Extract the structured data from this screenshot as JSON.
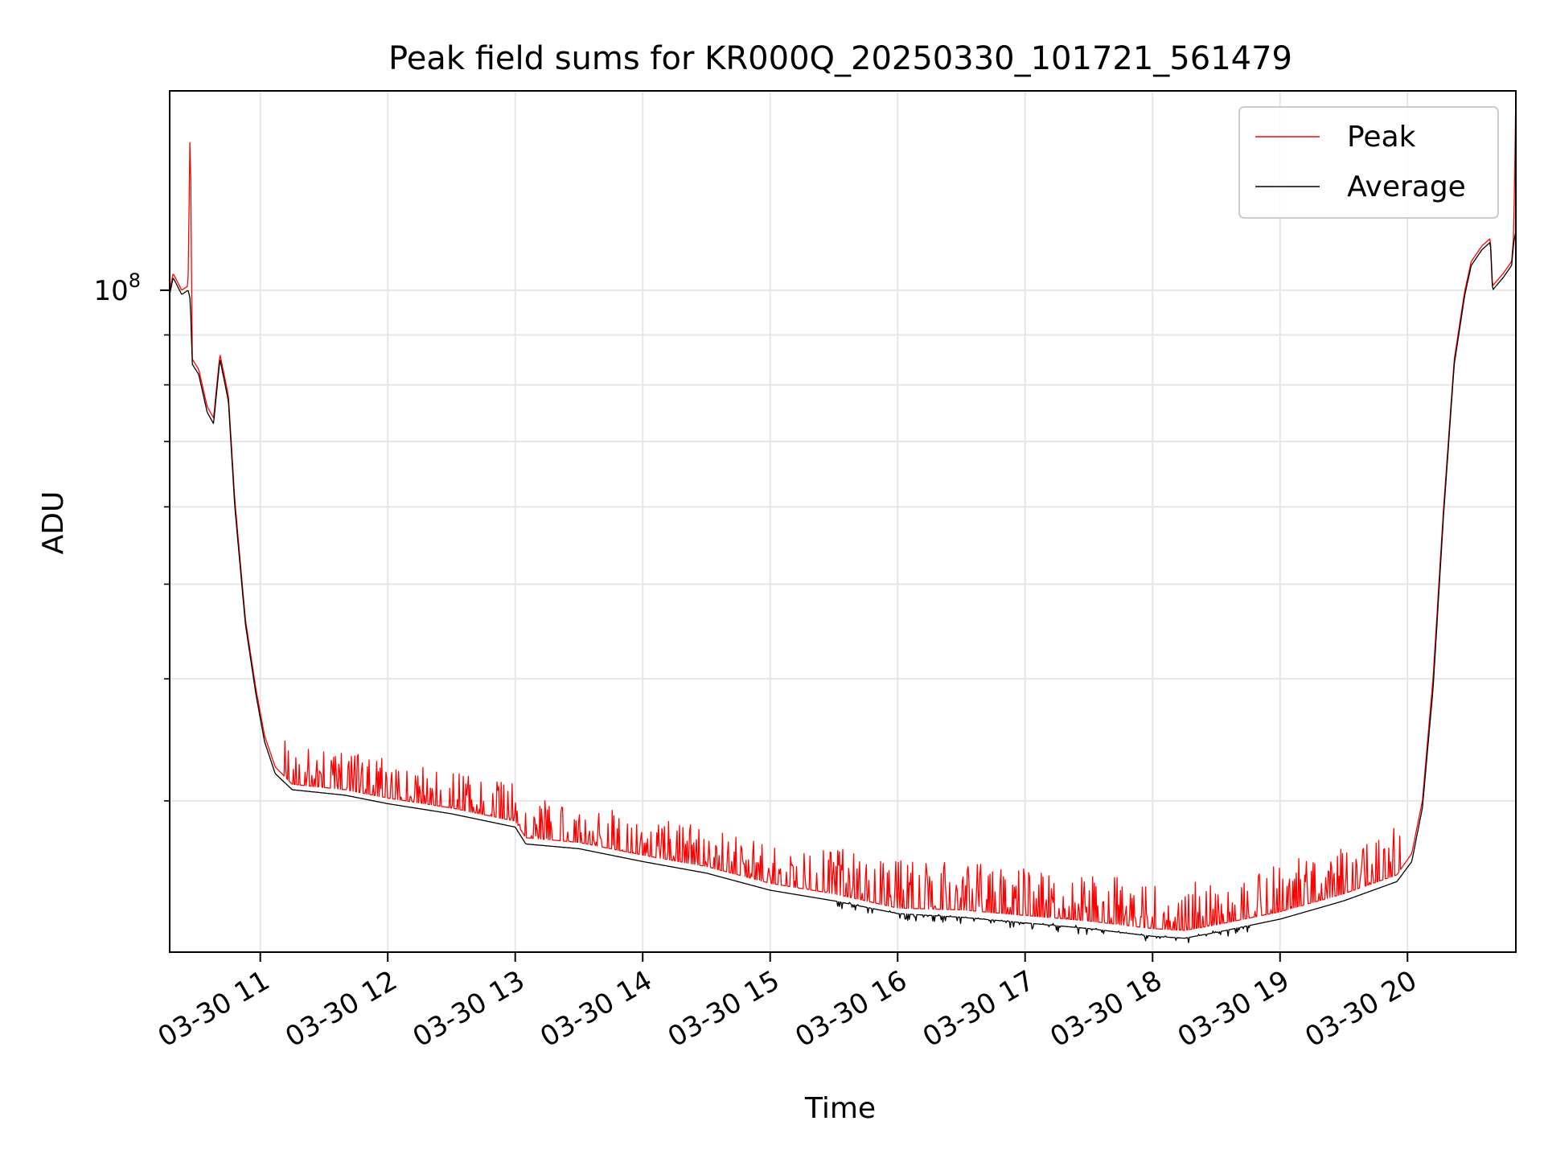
{
  "chart_data": {
    "type": "line",
    "title": "Peak field sums for KR000Q_20250330_101721_561479",
    "xlabel": "Time",
    "ylabel": "ADU",
    "yscale": "log",
    "grid": true,
    "legend": {
      "placement": "top-right",
      "entries": [
        "Peak",
        "Average"
      ]
    },
    "xlim": [
      "2025-03-30 10:17:21",
      "2025-03-30 20:51:00"
    ],
    "ylim": [
      21000000,
      160000000
    ],
    "x_ticks": [
      "03-30 11",
      "03-30 12",
      "03-30 13",
      "03-30 14",
      "03-30 15",
      "03-30 16",
      "03-30 17",
      "03-30 18",
      "03-30 19",
      "03-30 20"
    ],
    "x_tick_values": [
      "2025-03-30 11:00",
      "2025-03-30 12:00",
      "2025-03-30 13:00",
      "2025-03-30 14:00",
      "2025-03-30 15:00",
      "2025-03-30 16:00",
      "2025-03-30 17:00",
      "2025-03-30 18:00",
      "2025-03-30 19:00",
      "2025-03-30 20:00"
    ],
    "y_major_ticks": [
      {
        "value": 100000000,
        "label_base": "10",
        "label_exp": "8"
      }
    ],
    "y_minor_ticks": [
      30000000,
      40000000,
      50000000,
      60000000,
      70000000,
      80000000,
      90000000
    ],
    "series": [
      {
        "name": "Peak",
        "color": "#ff0000",
        "spike_band_ratio": [
          1.0,
          1.12
        ],
        "points": [
          [
            "2025-03-30 10:17:21",
            100000000.0
          ],
          [
            "2025-03-30 10:19:00",
            104000000.0
          ],
          [
            "2025-03-30 10:21:00",
            102000000.0
          ],
          [
            "2025-03-30 10:23:00",
            100000000.0
          ],
          [
            "2025-03-30 10:26:00",
            101000000.0
          ],
          [
            "2025-03-30 10:27:00",
            150000000.0
          ],
          [
            "2025-03-30 10:28:00",
            85000000.0
          ],
          [
            "2025-03-30 10:31:00",
            83000000.0
          ],
          [
            "2025-03-30 10:35:00",
            76000000.0
          ],
          [
            "2025-03-30 10:38:00",
            74000000.0
          ],
          [
            "2025-03-30 10:41:00",
            86000000.0
          ],
          [
            "2025-03-30 10:45:00",
            78000000.0
          ],
          [
            "2025-03-30 10:48:00",
            61000000.0
          ],
          [
            "2025-03-30 10:53:00",
            46000000.0
          ],
          [
            "2025-03-30 10:58:00",
            39000000.0
          ],
          [
            "2025-03-30 11:02:00",
            35000000.0
          ],
          [
            "2025-03-30 11:07:00",
            32500000.0
          ],
          [
            "2025-03-30 11:15:00",
            31200000.0
          ],
          [
            "2025-03-30 11:40:00",
            30800000.0
          ],
          [
            "2025-03-30 12:00:00",
            30200000.0
          ],
          [
            "2025-03-30 12:30:00",
            29500000.0
          ],
          [
            "2025-03-30 13:00:00",
            28600000.0
          ],
          [
            "2025-03-30 13:05:00",
            27500000.0
          ],
          [
            "2025-03-30 13:30:00",
            27200000.0
          ],
          [
            "2025-03-30 14:00:00",
            26400000.0
          ],
          [
            "2025-03-30 14:30:00",
            25700000.0
          ],
          [
            "2025-03-30 15:00:00",
            24700000.0
          ],
          [
            "2025-03-30 15:30:00",
            24100000.0
          ],
          [
            "2025-03-30 16:00:00",
            23300000.0
          ],
          [
            "2025-03-30 16:30:00",
            23200000.0
          ],
          [
            "2025-03-30 17:00:00",
            22900000.0
          ],
          [
            "2025-03-30 17:30:00",
            22600000.0
          ],
          [
            "2025-03-30 18:00:00",
            22200000.0
          ],
          [
            "2025-03-30 18:15:00",
            22100000.0
          ],
          [
            "2025-03-30 18:30:00",
            22400000.0
          ],
          [
            "2025-03-30 19:00:00",
            23100000.0
          ],
          [
            "2025-03-30 19:30:00",
            24100000.0
          ],
          [
            "2025-03-30 19:55:00",
            25200000.0
          ],
          [
            "2025-03-30 20:02:00",
            26500000.0
          ],
          [
            "2025-03-30 20:07:00",
            30000000.0
          ],
          [
            "2025-03-30 20:12:00",
            40000000.0
          ],
          [
            "2025-03-30 20:17:00",
            60000000.0
          ],
          [
            "2025-03-30 20:22:00",
            85000000.0
          ],
          [
            "2025-03-30 20:27:00",
            100000000.0
          ],
          [
            "2025-03-30 20:30:00",
            107000000.0
          ],
          [
            "2025-03-30 20:35:00",
            111000000.0
          ],
          [
            "2025-03-30 20:39:00",
            113000000.0
          ],
          [
            "2025-03-30 20:40:00",
            101000000.0
          ],
          [
            "2025-03-30 20:45:00",
            104000000.0
          ],
          [
            "2025-03-30 20:49:00",
            107000000.0
          ],
          [
            "2025-03-30 20:50:00",
            114000000.0
          ],
          [
            "2025-03-30 20:51:00",
            160000000.0
          ]
        ]
      },
      {
        "name": "Average",
        "color": "#000000",
        "points": [
          [
            "2025-03-30 10:17:21",
            99000000.0
          ],
          [
            "2025-03-30 10:19:00",
            103000000.0
          ],
          [
            "2025-03-30 10:21:00",
            101000000.0
          ],
          [
            "2025-03-30 10:23:00",
            99000000.0
          ],
          [
            "2025-03-30 10:26:00",
            100000000.0
          ],
          [
            "2025-03-30 10:27:00",
            98000000.0
          ],
          [
            "2025-03-30 10:28:00",
            84000000.0
          ],
          [
            "2025-03-30 10:31:00",
            82000000.0
          ],
          [
            "2025-03-30 10:35:00",
            75000000.0
          ],
          [
            "2025-03-30 10:38:00",
            73000000.0
          ],
          [
            "2025-03-30 10:41:00",
            85000000.0
          ],
          [
            "2025-03-30 10:45:00",
            77000000.0
          ],
          [
            "2025-03-30 10:48:00",
            60000000.0
          ],
          [
            "2025-03-30 10:53:00",
            45500000.0
          ],
          [
            "2025-03-30 10:58:00",
            38500000.0
          ],
          [
            "2025-03-30 11:02:00",
            34500000.0
          ],
          [
            "2025-03-30 11:07:00",
            32000000.0
          ],
          [
            "2025-03-30 11:15:00",
            30800000.0
          ],
          [
            "2025-03-30 11:40:00",
            30400000.0
          ],
          [
            "2025-03-30 12:00:00",
            29800000.0
          ],
          [
            "2025-03-30 12:30:00",
            29100000.0
          ],
          [
            "2025-03-30 13:00:00",
            28200000.0
          ],
          [
            "2025-03-30 13:05:00",
            27100000.0
          ],
          [
            "2025-03-30 13:30:00",
            26800000.0
          ],
          [
            "2025-03-30 14:00:00",
            26000000.0
          ],
          [
            "2025-03-30 14:30:00",
            25300000.0
          ],
          [
            "2025-03-30 15:00:00",
            24300000.0
          ],
          [
            "2025-03-30 15:30:00",
            23700000.0
          ],
          [
            "2025-03-30 16:00:00",
            23000000.0
          ],
          [
            "2025-03-30 16:30:00",
            22800000.0
          ],
          [
            "2025-03-30 17:00:00",
            22500000.0
          ],
          [
            "2025-03-30 17:30:00",
            22200000.0
          ],
          [
            "2025-03-30 18:00:00",
            21800000.0
          ],
          [
            "2025-03-30 18:15:00",
            21700000.0
          ],
          [
            "2025-03-30 18:30:00",
            22000000.0
          ],
          [
            "2025-03-30 19:00:00",
            22700000.0
          ],
          [
            "2025-03-30 19:30:00",
            23700000.0
          ],
          [
            "2025-03-30 19:55:00",
            24800000.0
          ],
          [
            "2025-03-30 20:02:00",
            26000000.0
          ],
          [
            "2025-03-30 20:07:00",
            29500000.0
          ],
          [
            "2025-03-30 20:12:00",
            39000000.0
          ],
          [
            "2025-03-30 20:17:00",
            59000000.0
          ],
          [
            "2025-03-30 20:22:00",
            84000000.0
          ],
          [
            "2025-03-30 20:27:00",
            99000000.0
          ],
          [
            "2025-03-30 20:30:00",
            106000000.0
          ],
          [
            "2025-03-30 20:35:00",
            110000000.0
          ],
          [
            "2025-03-30 20:39:00",
            112000000.0
          ],
          [
            "2025-03-30 20:40:00",
            100000000.0
          ],
          [
            "2025-03-30 20:45:00",
            103000000.0
          ],
          [
            "2025-03-30 20:49:00",
            106000000.0
          ],
          [
            "2025-03-30 20:50:00",
            112000000.0
          ],
          [
            "2025-03-30 20:51:00",
            115000000.0
          ]
        ]
      }
    ]
  }
}
